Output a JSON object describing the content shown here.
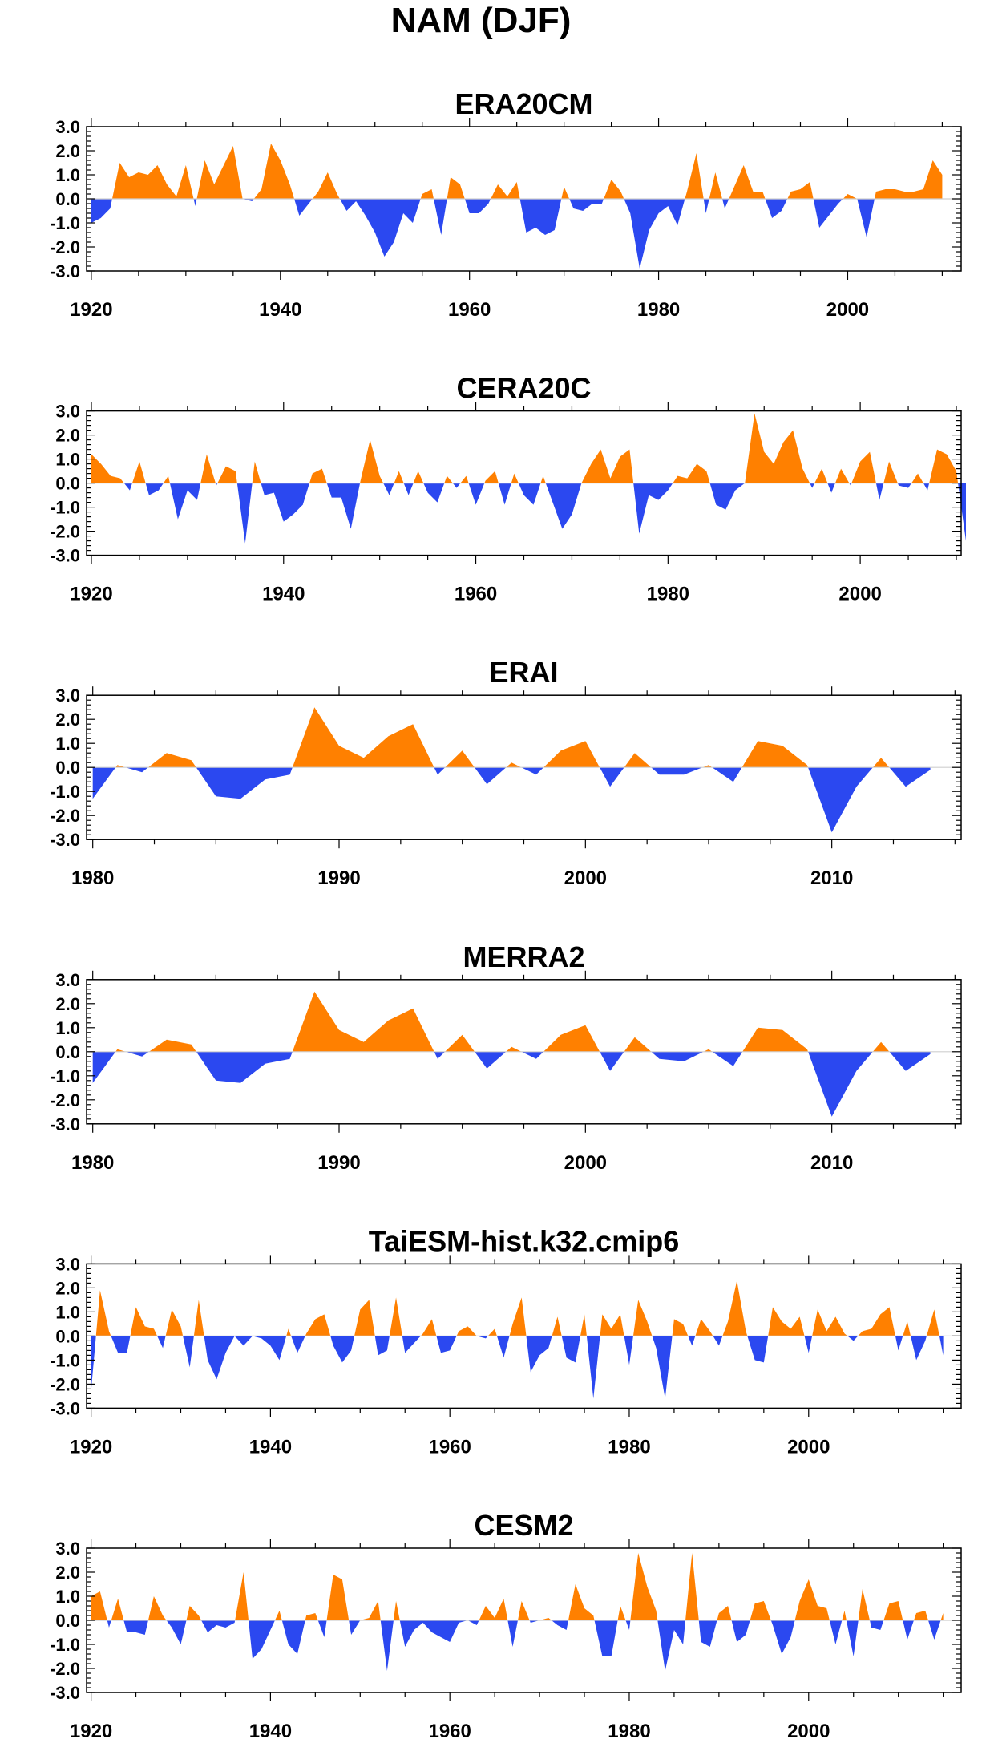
{
  "page": {
    "main_title": "NAM (DJF)"
  },
  "colors": {
    "positive": "#ff8000",
    "negative": "#2b48f0",
    "axis": "#000000"
  },
  "chart_data": [
    {
      "type": "area",
      "title": "ERA20CM",
      "xlabel": "",
      "ylabel": "",
      "xlim": [
        1919.5,
        2012
      ],
      "ylim": [
        -3,
        3
      ],
      "xticks": [
        1920,
        1940,
        1960,
        1980,
        2000
      ],
      "yticks": [
        3.0,
        2.0,
        1.0,
        0.0,
        -1.0,
        -2.0,
        -3.0
      ],
      "grid": false,
      "x_start": 1920,
      "values": [
        -1.0,
        -0.8,
        -0.4,
        1.5,
        0.9,
        1.1,
        1.0,
        1.4,
        0.6,
        0.1,
        1.4,
        -0.3,
        1.6,
        0.6,
        1.4,
        2.2,
        0.0,
        -0.1,
        0.4,
        2.3,
        1.6,
        0.6,
        -0.7,
        -0.2,
        0.3,
        1.1,
        0.2,
        -0.5,
        -0.1,
        -0.7,
        -1.4,
        -2.4,
        -1.8,
        -0.6,
        -1.0,
        0.2,
        0.4,
        -1.5,
        0.9,
        0.6,
        -0.6,
        -0.6,
        -0.2,
        0.6,
        0.1,
        0.7,
        -1.4,
        -1.2,
        -1.5,
        -1.3,
        0.5,
        -0.4,
        -0.5,
        -0.2,
        -0.2,
        0.8,
        0.3,
        -0.6,
        -2.9,
        -1.3,
        -0.6,
        -0.3,
        -1.1,
        0.3,
        1.9,
        -0.6,
        1.1,
        -0.4,
        0.5,
        1.4,
        0.3,
        0.3,
        -0.8,
        -0.5,
        0.3,
        0.4,
        0.7,
        -1.2,
        -0.7,
        -0.2,
        0.2,
        0.0,
        -1.6,
        0.3,
        0.4,
        0.4,
        0.3,
        0.3,
        0.4,
        1.6,
        1.0
      ]
    },
    {
      "type": "area",
      "title": "CERA20C",
      "xlabel": "",
      "ylabel": "",
      "xlim": [
        1919.5,
        2010.5
      ],
      "ylim": [
        -3,
        3
      ],
      "xticks": [
        1920,
        1940,
        1960,
        1980,
        2000
      ],
      "yticks": [
        3.0,
        2.0,
        1.0,
        0.0,
        -1.0,
        -2.0,
        -3.0
      ],
      "grid": false,
      "x_start": 1920,
      "values": [
        1.2,
        0.8,
        0.3,
        0.2,
        -0.3,
        0.9,
        -0.5,
        -0.3,
        0.3,
        -1.5,
        -0.3,
        -0.7,
        1.2,
        -0.1,
        0.7,
        0.5,
        -2.5,
        0.9,
        -0.5,
        -0.4,
        -1.6,
        -1.3,
        -0.9,
        0.4,
        0.6,
        -0.6,
        -0.6,
        -1.9,
        0.1,
        1.8,
        0.3,
        -0.5,
        0.5,
        -0.5,
        0.5,
        -0.4,
        -0.8,
        0.3,
        -0.2,
        0.3,
        -0.9,
        0.1,
        0.5,
        -0.9,
        0.4,
        -0.5,
        -0.9,
        0.3,
        -0.8,
        -1.9,
        -1.3,
        0.0,
        0.8,
        1.4,
        0.2,
        1.1,
        1.4,
        -2.1,
        -0.5,
        -0.7,
        -0.3,
        0.3,
        0.2,
        0.8,
        0.5,
        -0.9,
        -1.1,
        -0.3,
        0.0,
        2.9,
        1.3,
        0.8,
        1.7,
        2.2,
        0.6,
        -0.2,
        0.6,
        -0.4,
        0.6,
        -0.1,
        0.9,
        1.3,
        -0.7,
        0.9,
        -0.1,
        -0.2,
        0.4,
        -0.3,
        1.4,
        1.2,
        0.5,
        -2.4
      ]
    },
    {
      "type": "area",
      "title": "ERAI",
      "xlabel": "",
      "ylabel": "",
      "xlim": [
        1979.75,
        2015.25
      ],
      "ylim": [
        -3,
        3
      ],
      "xticks": [
        1980,
        1990,
        2000,
        2010
      ],
      "yticks": [
        3.0,
        2.0,
        1.0,
        0.0,
        -1.0,
        -2.0,
        -3.0
      ],
      "grid": false,
      "x_start": 1980,
      "values": [
        -1.3,
        0.1,
        -0.2,
        0.6,
        0.3,
        -1.2,
        -1.3,
        -0.5,
        -0.3,
        2.5,
        0.9,
        0.4,
        1.3,
        1.8,
        -0.3,
        0.7,
        -0.7,
        0.2,
        -0.3,
        0.7,
        1.1,
        -0.8,
        0.6,
        -0.3,
        -0.3,
        0.1,
        -0.6,
        1.1,
        0.9,
        0.1,
        -2.7,
        -0.8,
        0.4,
        -0.8,
        -0.1
      ]
    },
    {
      "type": "area",
      "title": "MERRA2",
      "xlabel": "",
      "ylabel": "",
      "xlim": [
        1979.75,
        2015.25
      ],
      "ylim": [
        -3,
        3
      ],
      "xticks": [
        1980,
        1990,
        2000,
        2010
      ],
      "yticks": [
        3.0,
        2.0,
        1.0,
        0.0,
        -1.0,
        -2.0,
        -3.0
      ],
      "grid": false,
      "x_start": 1980,
      "values": [
        -1.3,
        0.1,
        -0.2,
        0.5,
        0.3,
        -1.2,
        -1.3,
        -0.5,
        -0.3,
        2.5,
        0.9,
        0.4,
        1.3,
        1.8,
        -0.3,
        0.7,
        -0.7,
        0.2,
        -0.3,
        0.7,
        1.1,
        -0.8,
        0.6,
        -0.3,
        -0.4,
        0.1,
        -0.6,
        1.0,
        0.9,
        0.1,
        -2.7,
        -0.8,
        0.4,
        -0.8,
        -0.1
      ]
    },
    {
      "type": "area",
      "title": "TaiESM-hist.k32.cmip6",
      "xlabel": "",
      "ylabel": "",
      "xlim": [
        1919.5,
        2017
      ],
      "ylim": [
        -3,
        3
      ],
      "xticks": [
        1920,
        1940,
        1960,
        1980,
        2000
      ],
      "yticks": [
        3.0,
        2.0,
        1.0,
        0.0,
        -1.0,
        -2.0,
        -3.0
      ],
      "grid": false,
      "x_start": 1920,
      "values": [
        -2.3,
        1.9,
        0.2,
        -0.7,
        -0.7,
        1.2,
        0.4,
        0.3,
        -0.5,
        1.1,
        0.4,
        -1.3,
        1.5,
        -1.0,
        -1.8,
        -0.7,
        0.0,
        -0.4,
        0.0,
        -0.1,
        -0.4,
        -1.0,
        0.3,
        -0.7,
        0.1,
        0.7,
        0.9,
        -0.4,
        -1.1,
        -0.6,
        1.1,
        1.5,
        -0.8,
        -0.6,
        1.6,
        -0.7,
        -0.3,
        0.1,
        0.7,
        -0.7,
        -0.6,
        0.2,
        0.4,
        0.0,
        -0.1,
        0.3,
        -0.9,
        0.5,
        1.6,
        -1.5,
        -0.8,
        -0.5,
        0.8,
        -0.9,
        -1.1,
        0.9,
        -2.6,
        0.9,
        0.3,
        0.9,
        -1.2,
        1.5,
        0.6,
        -0.5,
        -2.6,
        0.7,
        0.5,
        -0.4,
        0.7,
        0.2,
        -0.4,
        0.6,
        2.3,
        0.2,
        -1.0,
        -1.1,
        1.2,
        0.6,
        0.3,
        0.8,
        -0.7,
        1.1,
        0.2,
        0.8,
        0.1,
        -0.2,
        0.2,
        0.3,
        0.9,
        1.2,
        -0.6,
        0.6,
        -1.0,
        -0.2,
        1.1,
        -0.8
      ]
    },
    {
      "type": "area",
      "title": "CESM2",
      "xlabel": "",
      "ylabel": "",
      "xlim": [
        1919.5,
        2017
      ],
      "ylim": [
        -3,
        3
      ],
      "xticks": [
        1920,
        1940,
        1960,
        1980,
        2000
      ],
      "yticks": [
        3.0,
        2.0,
        1.0,
        0.0,
        -1.0,
        -2.0,
        -3.0
      ],
      "grid": false,
      "x_start": 1920,
      "values": [
        1.0,
        1.2,
        -0.3,
        0.9,
        -0.5,
        -0.5,
        -0.6,
        1.0,
        0.2,
        -0.3,
        -1.0,
        0.6,
        0.2,
        -0.5,
        -0.2,
        -0.3,
        -0.1,
        2.0,
        -1.6,
        -1.2,
        -0.4,
        0.4,
        -1.0,
        -1.4,
        0.2,
        0.3,
        -0.7,
        1.9,
        1.7,
        -0.6,
        0.0,
        0.1,
        0.8,
        -2.1,
        0.8,
        -1.1,
        -0.4,
        -0.1,
        -0.5,
        -0.7,
        -0.9,
        -0.1,
        0.0,
        -0.2,
        0.6,
        0.1,
        0.9,
        -1.1,
        0.8,
        -0.1,
        0.0,
        0.1,
        -0.2,
        -0.4,
        1.5,
        0.5,
        0.2,
        -1.5,
        -1.5,
        0.6,
        -0.4,
        2.8,
        1.4,
        0.4,
        -2.1,
        -0.4,
        -1.0,
        2.8,
        -0.9,
        -1.1,
        0.3,
        0.6,
        -0.9,
        -0.6,
        0.7,
        0.8,
        -0.2,
        -1.4,
        -0.7,
        0.8,
        1.7,
        0.6,
        0.5,
        -1.0,
        0.4,
        -1.5,
        1.3,
        -0.3,
        -0.4,
        0.7,
        0.8,
        -0.8,
        0.3,
        0.4,
        -0.8,
        0.3
      ]
    }
  ]
}
